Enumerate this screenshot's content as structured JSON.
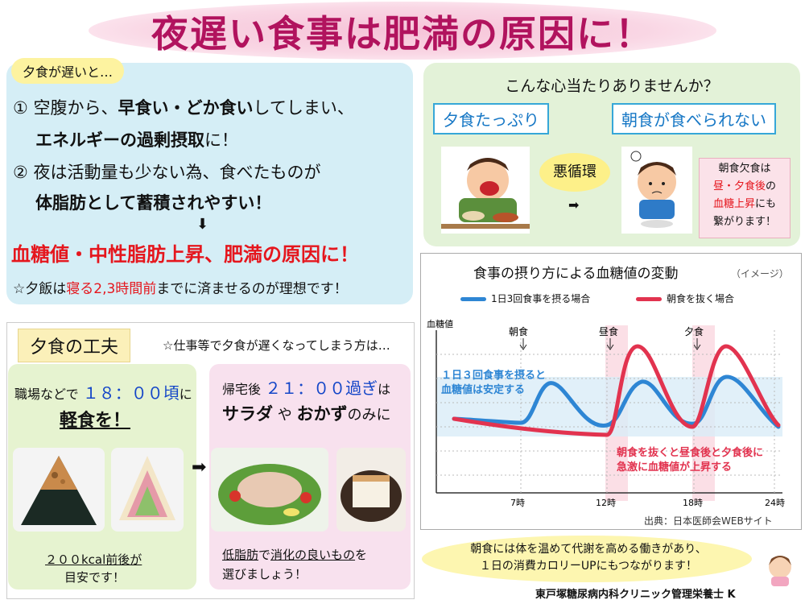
{
  "title": "夜遅い食事は肥満の原因に！",
  "intro": {
    "tag": "夕食が遅いと…",
    "l1_pre": "① 空腹から、",
    "l1_bold": "早食い・どか食い",
    "l1_post": "してしまい、",
    "l2_bold": "エネルギーの過剰摂取",
    "l2_post": "に！",
    "l3": "② 夜は活動量も少ない為、食べたものが",
    "l4": "体脂肪として蓄積されやすい！",
    "arrow": "⬇",
    "red_line": "血糖値・中性脂肪上昇、肥満の原因に！",
    "note_pre": "☆夕飯は",
    "note_red": "寝る2,3時間前",
    "note_post": "までに済ませるのが理想です！"
  },
  "cycle": {
    "question": "こんな心当たりありませんか？",
    "box1": "夕食たっぷり",
    "box2": "朝食が食べられない",
    "vicious": "悪循環",
    "arrow": "➡",
    "note1": "朝食欠食は",
    "note2_red": "昼・夕食後",
    "note2": "の",
    "note3_red": "血糖上昇",
    "note3": "にも",
    "note4": "繋がります！"
  },
  "chart_data": {
    "type": "line",
    "title": "食事の摂り方による血糖値の変動",
    "subtitle": "（イメージ）",
    "ylabel": "血糖値",
    "x_ticks": [
      "7時",
      "12時",
      "18時",
      "24時"
    ],
    "meal_labels": [
      "朝食",
      "昼食",
      "夕食"
    ],
    "series": [
      {
        "name": "1日3回食事を摂る場合",
        "color": "#2e86d4"
      },
      {
        "name": "朝食を抜く場合",
        "color": "#e2334f"
      }
    ],
    "annotation_blue": [
      "１日３回食事を摂ると",
      "血糖値は安定する"
    ],
    "annotation_red": [
      "朝食を抜くと昼食後と夕食後に",
      "急激に血糖値が上昇する"
    ],
    "source": "出典：日本医師会WEBサイト"
  },
  "tips": {
    "heading": "夕食の工夫",
    "sub": "☆仕事等で夕食が遅くなってしまう方は…",
    "left_1pre": "職場などで",
    "left_1blue": "１８：００頃",
    "left_1post": "に",
    "left_2": "軽食を！",
    "left_3": "２００kcal前後が",
    "left_4": "目安です！",
    "arrow": "➡",
    "right_1pre": "帰宅後",
    "right_1blue": "２１：００過ぎ",
    "right_1post": "は",
    "right_2a": "サラダ",
    "right_2b": "や",
    "right_2c": "おかず",
    "right_2d": "のみに",
    "right_3a": "低脂肪",
    "right_3b": "で",
    "right_3c": "消化の良いもの",
    "right_3d": "を",
    "right_4": "選びましょう！"
  },
  "footer": {
    "speech1": "朝食には体を温めて代謝を高める働きがあり、",
    "speech2": "１日の消費カロリーUPにもつながります！",
    "credit": "東戸塚糖尿病内科クリニック管理栄養士 K"
  }
}
